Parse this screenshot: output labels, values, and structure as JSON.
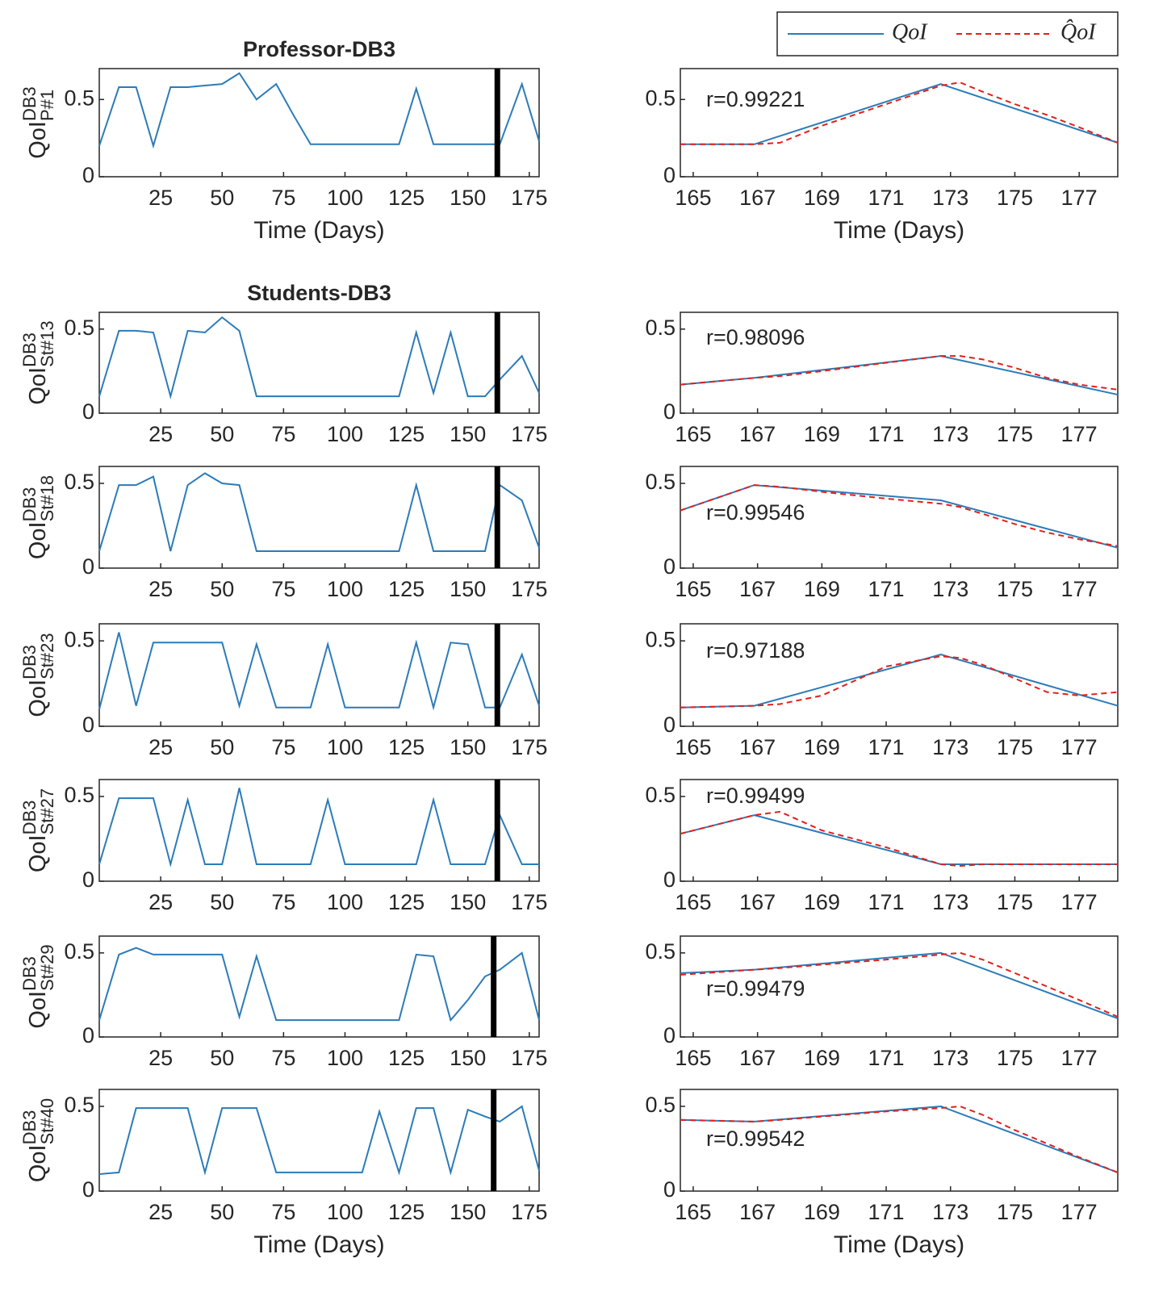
{
  "legend": {
    "position": "top-right",
    "entries": [
      {
        "name": "QoI",
        "color": "#2b7bb9",
        "dashed": false
      },
      {
        "name": "Q̂oI",
        "color": "#e3201b",
        "dashed": true
      }
    ]
  },
  "chart_data": [
    {
      "type": "line",
      "title": "Professor-DB3",
      "xlabel": "Time (Days)",
      "ylabel": {
        "base": "QoI",
        "sup": "DB3",
        "sub": "P#1"
      },
      "xlim": [
        0,
        179
      ],
      "ylim": [
        0,
        0.7
      ],
      "xticks": [
        25,
        50,
        75,
        100,
        125,
        150,
        175
      ],
      "yticks": [
        0,
        0.5
      ],
      "divider": 162,
      "series": [
        {
          "color": "#2b7bb9",
          "x": [
            0,
            8,
            15,
            22,
            29,
            36,
            43,
            50,
            57,
            64,
            72,
            79,
            86,
            93,
            100,
            107,
            114,
            122,
            129,
            136,
            143,
            150,
            157,
            163,
            172,
            179
          ],
          "values": [
            0.2,
            0.58,
            0.58,
            0.2,
            0.58,
            0.58,
            0.59,
            0.6,
            0.67,
            0.5,
            0.6,
            0.4,
            0.21,
            0.21,
            0.21,
            0.21,
            0.21,
            0.21,
            0.57,
            0.21,
            0.21,
            0.21,
            0.21,
            0.21,
            0.6,
            0.23
          ]
        }
      ]
    },
    {
      "type": "line",
      "xlabel": "Time (Days)",
      "annotation": "r=0.99221",
      "xlim": [
        164.6,
        178.2
      ],
      "ylim": [
        0,
        0.7
      ],
      "xticks": [
        165,
        167,
        169,
        171,
        173,
        175,
        177
      ],
      "yticks": [
        0,
        0.5
      ],
      "series": [
        {
          "color": "#2b7bb9",
          "x": [
            164.6,
            166.9,
            172.7,
            178.2
          ],
          "values": [
            0.21,
            0.21,
            0.6,
            0.22
          ]
        },
        {
          "color": "#e3201b",
          "dashed": true,
          "x": [
            164.6,
            166.9,
            167.7,
            169,
            171,
            172.7,
            173.3,
            174,
            175,
            176,
            177,
            178.2
          ],
          "values": [
            0.21,
            0.21,
            0.22,
            0.33,
            0.47,
            0.59,
            0.61,
            0.55,
            0.47,
            0.4,
            0.32,
            0.22
          ]
        }
      ]
    },
    {
      "type": "line",
      "title": "Students-DB3",
      "ylabel": {
        "base": "QoI",
        "sup": "DB3",
        "sub": "St#13"
      },
      "xlim": [
        0,
        179
      ],
      "ylim": [
        0,
        0.6
      ],
      "xticks": [
        25,
        50,
        75,
        100,
        125,
        150,
        175
      ],
      "yticks": [
        0,
        0.5
      ],
      "divider": 162,
      "series": [
        {
          "color": "#2b7bb9",
          "x": [
            0,
            8,
            15,
            22,
            29,
            36,
            43,
            50,
            57,
            64,
            72,
            79,
            86,
            93,
            100,
            107,
            114,
            122,
            129,
            136,
            143,
            150,
            157,
            163,
            172,
            179
          ],
          "values": [
            0.1,
            0.49,
            0.49,
            0.48,
            0.1,
            0.49,
            0.48,
            0.57,
            0.49,
            0.1,
            0.1,
            0.1,
            0.1,
            0.1,
            0.1,
            0.1,
            0.1,
            0.1,
            0.48,
            0.12,
            0.48,
            0.1,
            0.1,
            0.2,
            0.34,
            0.12
          ]
        }
      ]
    },
    {
      "type": "line",
      "annotation": "r=0.98096",
      "xlim": [
        164.6,
        178.2
      ],
      "ylim": [
        0,
        0.6
      ],
      "xticks": [
        165,
        167,
        169,
        171,
        173,
        175,
        177
      ],
      "yticks": [
        0,
        0.5
      ],
      "series": [
        {
          "color": "#2b7bb9",
          "x": [
            164.6,
            166.9,
            172.7,
            178.2
          ],
          "values": [
            0.17,
            0.21,
            0.34,
            0.11
          ]
        },
        {
          "color": "#e3201b",
          "dashed": true,
          "x": [
            164.6,
            166.9,
            167.7,
            169,
            171,
            172.7,
            173.3,
            174,
            175,
            176,
            177,
            178.2
          ],
          "values": [
            0.17,
            0.21,
            0.22,
            0.25,
            0.3,
            0.34,
            0.34,
            0.32,
            0.27,
            0.21,
            0.17,
            0.14
          ]
        }
      ]
    },
    {
      "type": "line",
      "ylabel": {
        "base": "QoI",
        "sup": "DB3",
        "sub": "St#18"
      },
      "xlim": [
        0,
        179
      ],
      "ylim": [
        0,
        0.6
      ],
      "xticks": [
        25,
        50,
        75,
        100,
        125,
        150,
        175
      ],
      "yticks": [
        0,
        0.5
      ],
      "divider": 162,
      "series": [
        {
          "color": "#2b7bb9",
          "x": [
            0,
            8,
            15,
            22,
            29,
            36,
            43,
            50,
            57,
            64,
            72,
            79,
            86,
            93,
            100,
            107,
            114,
            122,
            129,
            136,
            143,
            150,
            157,
            163,
            172,
            179
          ],
          "values": [
            0.1,
            0.49,
            0.49,
            0.54,
            0.1,
            0.49,
            0.56,
            0.5,
            0.49,
            0.1,
            0.1,
            0.1,
            0.1,
            0.1,
            0.1,
            0.1,
            0.1,
            0.1,
            0.49,
            0.1,
            0.1,
            0.1,
            0.1,
            0.49,
            0.4,
            0.12
          ]
        }
      ]
    },
    {
      "type": "line",
      "annotation": "r=0.99546",
      "xlim": [
        164.6,
        178.2
      ],
      "ylim": [
        0,
        0.6
      ],
      "xticks": [
        165,
        167,
        169,
        171,
        173,
        175,
        177
      ],
      "yticks": [
        0,
        0.5
      ],
      "series": [
        {
          "color": "#2b7bb9",
          "x": [
            164.6,
            166.9,
            172.7,
            178.2
          ],
          "values": [
            0.34,
            0.49,
            0.4,
            0.12
          ]
        },
        {
          "color": "#e3201b",
          "dashed": true,
          "x": [
            164.6,
            166.9,
            167.7,
            169,
            171,
            172.7,
            173.3,
            174,
            175,
            176,
            177,
            178.2
          ],
          "values": [
            0.34,
            0.49,
            0.48,
            0.45,
            0.41,
            0.38,
            0.36,
            0.32,
            0.26,
            0.21,
            0.17,
            0.13
          ]
        }
      ]
    },
    {
      "type": "line",
      "ylabel": {
        "base": "QoI",
        "sup": "DB3",
        "sub": "St#23"
      },
      "xlim": [
        0,
        179
      ],
      "ylim": [
        0,
        0.6
      ],
      "xticks": [
        25,
        50,
        75,
        100,
        125,
        150,
        175
      ],
      "yticks": [
        0,
        0.5
      ],
      "divider": 162,
      "series": [
        {
          "color": "#2b7bb9",
          "x": [
            0,
            8,
            15,
            22,
            29,
            36,
            43,
            50,
            57,
            64,
            72,
            79,
            86,
            93,
            100,
            107,
            114,
            122,
            129,
            136,
            143,
            150,
            157,
            163,
            172,
            179
          ],
          "values": [
            0.1,
            0.55,
            0.12,
            0.49,
            0.49,
            0.49,
            0.49,
            0.49,
            0.12,
            0.48,
            0.11,
            0.11,
            0.11,
            0.48,
            0.11,
            0.11,
            0.11,
            0.11,
            0.49,
            0.11,
            0.49,
            0.48,
            0.11,
            0.11,
            0.42,
            0.12
          ]
        }
      ]
    },
    {
      "type": "line",
      "annotation": "r=0.97188",
      "xlim": [
        164.6,
        178.2
      ],
      "ylim": [
        0,
        0.6
      ],
      "xticks": [
        165,
        167,
        169,
        171,
        173,
        175,
        177
      ],
      "yticks": [
        0,
        0.5
      ],
      "series": [
        {
          "color": "#2b7bb9",
          "x": [
            164.6,
            166.9,
            172.7,
            178.2
          ],
          "values": [
            0.11,
            0.12,
            0.42,
            0.12
          ]
        },
        {
          "color": "#e3201b",
          "dashed": true,
          "x": [
            164.6,
            166.9,
            167.7,
            169,
            171,
            172.7,
            173.3,
            174,
            175,
            176,
            177,
            178.2
          ],
          "values": [
            0.11,
            0.12,
            0.13,
            0.18,
            0.35,
            0.41,
            0.4,
            0.36,
            0.28,
            0.2,
            0.18,
            0.2
          ]
        }
      ]
    },
    {
      "type": "line",
      "ylabel": {
        "base": "QoI",
        "sup": "DB3",
        "sub": "St#27"
      },
      "xlim": [
        0,
        179
      ],
      "ylim": [
        0,
        0.6
      ],
      "xticks": [
        25,
        50,
        75,
        100,
        125,
        150,
        175
      ],
      "yticks": [
        0,
        0.5
      ],
      "divider": 162,
      "series": [
        {
          "color": "#2b7bb9",
          "x": [
            0,
            8,
            15,
            22,
            29,
            36,
            43,
            50,
            57,
            64,
            72,
            79,
            86,
            93,
            100,
            107,
            114,
            122,
            129,
            136,
            143,
            150,
            157,
            163,
            172,
            179
          ],
          "values": [
            0.1,
            0.49,
            0.49,
            0.49,
            0.1,
            0.48,
            0.1,
            0.1,
            0.55,
            0.1,
            0.1,
            0.1,
            0.1,
            0.48,
            0.1,
            0.1,
            0.1,
            0.1,
            0.1,
            0.48,
            0.1,
            0.1,
            0.1,
            0.39,
            0.1,
            0.1
          ]
        }
      ]
    },
    {
      "type": "line",
      "annotation": "r=0.99499",
      "xlim": [
        164.6,
        178.2
      ],
      "ylim": [
        0,
        0.6
      ],
      "xticks": [
        165,
        167,
        169,
        171,
        173,
        175,
        177
      ],
      "yticks": [
        0,
        0.5
      ],
      "series": [
        {
          "color": "#2b7bb9",
          "x": [
            164.6,
            166.9,
            172.7,
            178.2
          ],
          "values": [
            0.28,
            0.39,
            0.1,
            0.1
          ]
        },
        {
          "color": "#e3201b",
          "dashed": true,
          "x": [
            164.6,
            166.9,
            167.7,
            169,
            171,
            172.7,
            173.3,
            174,
            175,
            176,
            177,
            178.2
          ],
          "values": [
            0.28,
            0.39,
            0.41,
            0.3,
            0.2,
            0.1,
            0.09,
            0.1,
            0.1,
            0.1,
            0.1,
            0.1
          ]
        }
      ]
    },
    {
      "type": "line",
      "ylabel": {
        "base": "QoI",
        "sup": "DB3",
        "sub": "St#29"
      },
      "xlim": [
        0,
        179
      ],
      "ylim": [
        0,
        0.6
      ],
      "xticks": [
        25,
        50,
        75,
        100,
        125,
        150,
        175
      ],
      "yticks": [
        0,
        0.5
      ],
      "divider": 160.5,
      "series": [
        {
          "color": "#2b7bb9",
          "x": [
            0,
            8,
            15,
            22,
            29,
            36,
            43,
            50,
            57,
            64,
            72,
            79,
            86,
            93,
            100,
            107,
            114,
            122,
            129,
            136,
            143,
            150,
            157,
            163,
            172,
            179
          ],
          "values": [
            0.1,
            0.49,
            0.53,
            0.49,
            0.49,
            0.49,
            0.49,
            0.49,
            0.12,
            0.48,
            0.1,
            0.1,
            0.1,
            0.1,
            0.1,
            0.1,
            0.1,
            0.1,
            0.49,
            0.48,
            0.1,
            0.22,
            0.36,
            0.4,
            0.5,
            0.1
          ]
        }
      ]
    },
    {
      "type": "line",
      "annotation": "r=0.99479",
      "xlim": [
        164.6,
        178.2
      ],
      "ylim": [
        0,
        0.6
      ],
      "xticks": [
        165,
        167,
        169,
        171,
        173,
        175,
        177
      ],
      "yticks": [
        0,
        0.5
      ],
      "series": [
        {
          "color": "#2b7bb9",
          "x": [
            164.6,
            166.9,
            172.7,
            178.2
          ],
          "values": [
            0.38,
            0.4,
            0.5,
            0.11
          ]
        },
        {
          "color": "#e3201b",
          "dashed": true,
          "x": [
            164.6,
            166.9,
            167.7,
            169,
            171,
            172.7,
            173.3,
            174,
            175,
            176,
            177,
            178.2
          ],
          "values": [
            0.37,
            0.4,
            0.41,
            0.43,
            0.46,
            0.49,
            0.5,
            0.46,
            0.38,
            0.3,
            0.22,
            0.12
          ]
        }
      ]
    },
    {
      "type": "line",
      "xlabel": "Time (Days)",
      "ylabel": {
        "base": "QoI",
        "sup": "DB3",
        "sub": "St#40"
      },
      "xlim": [
        0,
        179
      ],
      "ylim": [
        0,
        0.6
      ],
      "xticks": [
        25,
        50,
        75,
        100,
        125,
        150,
        175
      ],
      "yticks": [
        0,
        0.5
      ],
      "divider": 160.5,
      "series": [
        {
          "color": "#2b7bb9",
          "x": [
            0,
            8,
            15,
            22,
            29,
            36,
            43,
            50,
            57,
            64,
            72,
            79,
            86,
            93,
            100,
            107,
            114,
            122,
            129,
            136,
            143,
            150,
            157,
            163,
            172,
            179
          ],
          "values": [
            0.1,
            0.11,
            0.49,
            0.49,
            0.49,
            0.49,
            0.11,
            0.49,
            0.49,
            0.49,
            0.11,
            0.11,
            0.11,
            0.11,
            0.11,
            0.11,
            0.47,
            0.11,
            0.49,
            0.49,
            0.11,
            0.48,
            0.44,
            0.41,
            0.5,
            0.12
          ]
        }
      ]
    },
    {
      "type": "line",
      "xlabel": "Time (Days)",
      "annotation": "r=0.99542",
      "xlim": [
        164.6,
        178.2
      ],
      "ylim": [
        0,
        0.6
      ],
      "xticks": [
        165,
        167,
        169,
        171,
        173,
        175,
        177
      ],
      "yticks": [
        0,
        0.5
      ],
      "series": [
        {
          "color": "#2b7bb9",
          "x": [
            164.6,
            166.9,
            172.7,
            178.2
          ],
          "values": [
            0.42,
            0.41,
            0.5,
            0.11
          ]
        },
        {
          "color": "#e3201b",
          "dashed": true,
          "x": [
            164.6,
            166.9,
            167.7,
            169,
            171,
            172.7,
            173.3,
            174,
            175,
            176,
            177,
            178.2
          ],
          "values": [
            0.42,
            0.41,
            0.42,
            0.44,
            0.47,
            0.49,
            0.5,
            0.45,
            0.36,
            0.28,
            0.2,
            0.11
          ]
        }
      ]
    }
  ]
}
